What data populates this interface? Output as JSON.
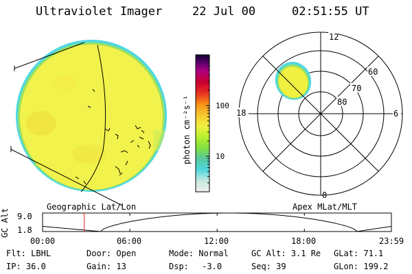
{
  "header": {
    "instrument": "Ultraviolet Imager",
    "date": "22 Jul 00",
    "time": "02:51:55 UT"
  },
  "colors": {
    "disk_fill": "#f2f24c",
    "disk_edge_green": "#9ae060",
    "disk_edge_cyan": "#50d8e0",
    "dayglow_blob": "#f0f040"
  },
  "colorbar": {
    "label": "photon cm⁻²s⁻¹",
    "ticks": [
      {
        "label": "100",
        "value": 100
      },
      {
        "label": "10",
        "value": 10
      }
    ],
    "range": [
      2,
      1000
    ],
    "scale": "log",
    "stops": [
      "#f0f0f0",
      "#c8e8e0",
      "#50d8e0",
      "#58c8a0",
      "#80e040",
      "#b8f030",
      "#f0f040",
      "#f8c830",
      "#f89018",
      "#e83020",
      "#c80030",
      "#b00080",
      "#600070",
      "#100030"
    ]
  },
  "panels": {
    "left_caption": "Geographic Lat/Lon",
    "right_caption": "Apex MLat/MLT"
  },
  "polar": {
    "mlt_labels": {
      "top": "12",
      "left": "18",
      "right": "6",
      "bottom": "0"
    },
    "lat_labels": [
      "60",
      "70",
      "80"
    ]
  },
  "orbit": {
    "ylabel": "GC Alt",
    "y_ticks": [
      "9.0",
      "1.8"
    ],
    "x_ticks": [
      "00:00",
      "06:00",
      "12:00",
      "18:00",
      "23:59"
    ],
    "marker_time": "02:51:55",
    "marker_color": "#e02020"
  },
  "status": {
    "row1": [
      {
        "key": "flt",
        "label": "Flt:",
        "value": "LBHL"
      },
      {
        "key": "door",
        "label": "Door:",
        "value": "Open"
      },
      {
        "key": "mode",
        "label": "Mode:",
        "value": "Normal"
      },
      {
        "key": "gcalt",
        "label": "GC Alt:",
        "value": "3.1 Re"
      },
      {
        "key": "glat",
        "label": "GLat:",
        "value": "71.1"
      }
    ],
    "row2": [
      {
        "key": "ip",
        "label": "IP:",
        "value": "36.0"
      },
      {
        "key": "gain",
        "label": "Gain:",
        "value": "13"
      },
      {
        "key": "dsp",
        "label": "Dsp:",
        "value": "-3.0"
      },
      {
        "key": "seq",
        "label": "Seq:",
        "value": "39"
      },
      {
        "key": "glon",
        "label": "GLon:",
        "value": "199.2"
      }
    ]
  }
}
